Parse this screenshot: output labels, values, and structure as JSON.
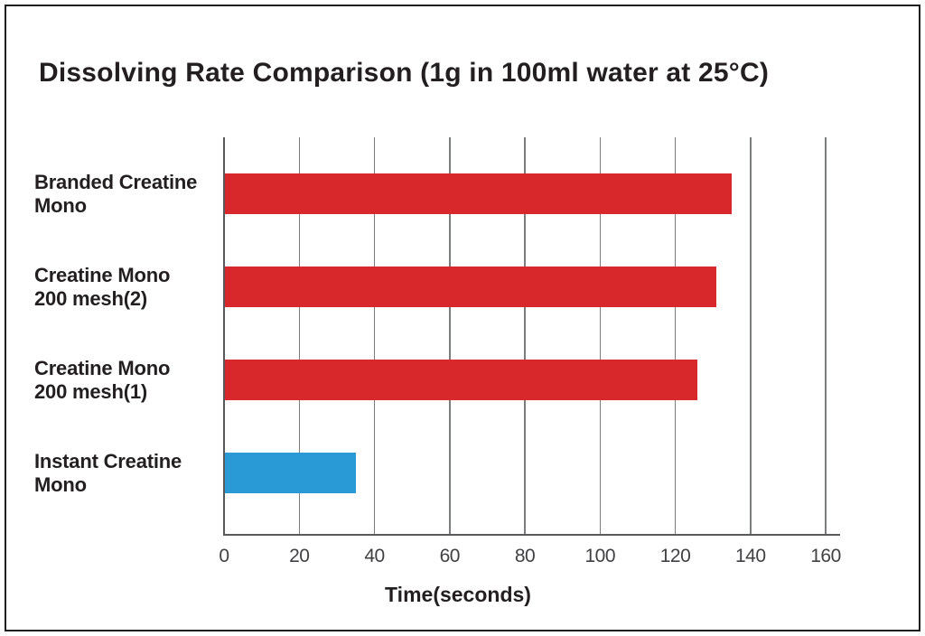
{
  "title": "Dissolving Rate Comparison (1g in 100ml water at 25°C)",
  "chart_data": {
    "type": "bar",
    "orientation": "horizontal",
    "title": "Dissolving Rate Comparison (1g in 100ml water at 25°C)",
    "xlabel": "Time(seconds)",
    "ylabel": "",
    "categories": [
      "Branded Creatine Mono",
      "Creatine Mono 200 mesh(2)",
      "Creatine Mono 200 mesh(1)",
      "Instant Creatine Mono"
    ],
    "category_lines": [
      [
        "Branded Creatine",
        "Mono"
      ],
      [
        "Creatine Mono",
        "200 mesh(2)"
      ],
      [
        "Creatine Mono",
        "200 mesh(1)"
      ],
      [
        "Instant Creatine",
        "Mono"
      ]
    ],
    "values": [
      135,
      131,
      126,
      35
    ],
    "unit": "seconds",
    "bar_colors": [
      "#d9282b",
      "#d9282b",
      "#d9282b",
      "#2a9ad7"
    ],
    "xlim": [
      0,
      160
    ],
    "xticks": [
      0,
      20,
      40,
      60,
      80,
      100,
      120,
      140,
      160
    ],
    "grid": "vertical-only",
    "legend": "none"
  },
  "colors": {
    "bar_red": "#d9282b",
    "bar_blue": "#2a9ad7",
    "text": "#231f20",
    "tick_text": "#414042",
    "grid_line": "#7b7c7e",
    "axis_line": "#58595b",
    "page_border": "#231f20",
    "background": "#ffffff"
  }
}
